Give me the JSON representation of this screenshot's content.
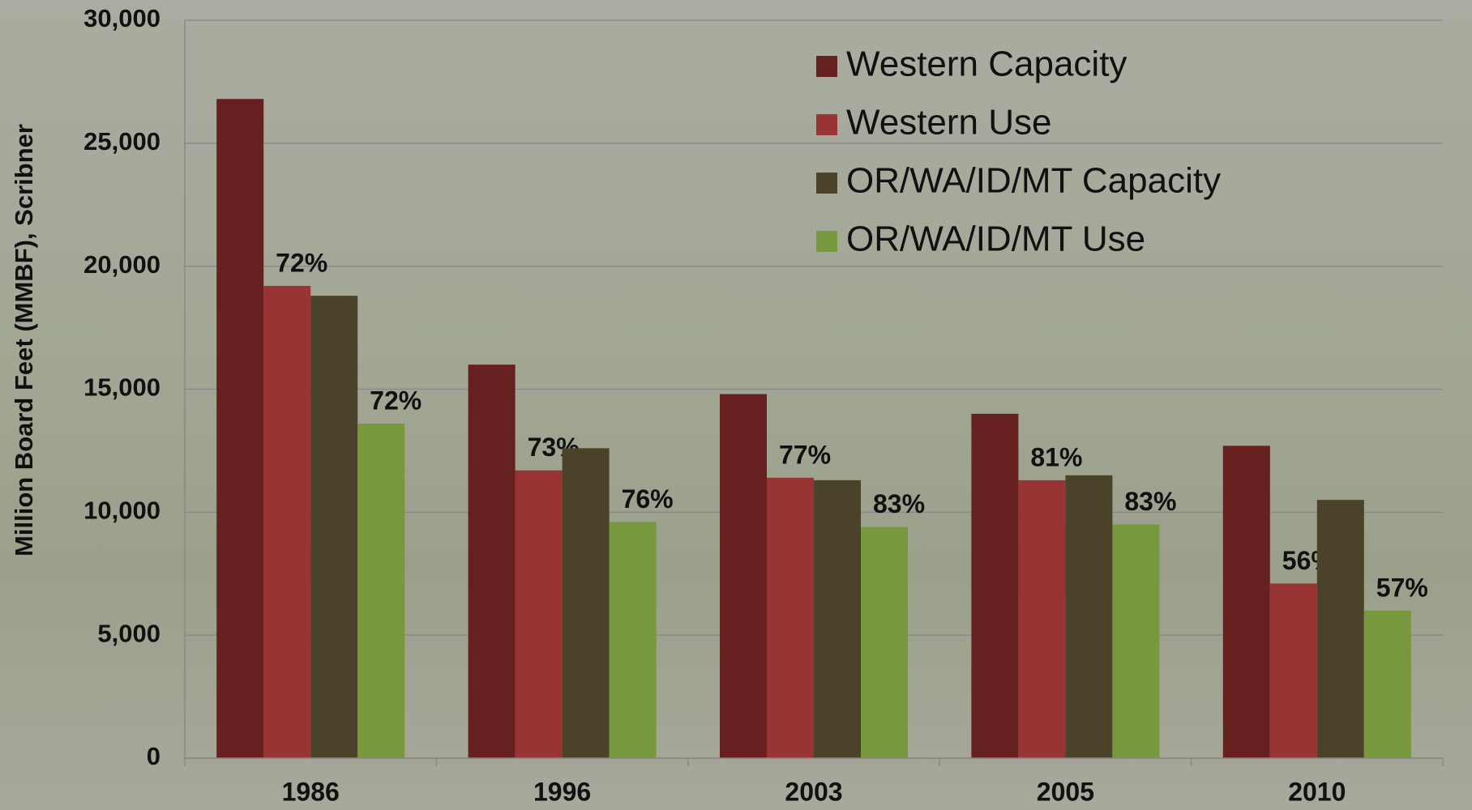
{
  "chart_data": {
    "type": "bar",
    "y_label": "Million Board Feet (MMBF), Scribner",
    "categories": [
      "1986",
      "1996",
      "2003",
      "2005",
      "2010"
    ],
    "series": [
      {
        "name": "Western Capacity",
        "color": "#65201f",
        "values": [
          26800,
          16000,
          14800,
          14000,
          12700
        ]
      },
      {
        "name": "Western Use",
        "color": "#983434",
        "values": [
          19200,
          11700,
          11400,
          11300,
          7100
        ],
        "rate_labels": [
          "72%",
          "73%",
          "77%",
          "81%",
          "56%"
        ]
      },
      {
        "name": "OR/WA/ID/MT Capacity",
        "color": "#4a4229",
        "values": [
          18800,
          12600,
          11300,
          11500,
          10500
        ]
      },
      {
        "name": "OR/WA/ID/MT Use",
        "color": "#77983c",
        "values": [
          13600,
          9600,
          9400,
          9500,
          6000
        ],
        "rate_labels": [
          "72%",
          "76%",
          "83%",
          "83%",
          "57%"
        ]
      }
    ],
    "ylim": [
      0,
      30000
    ],
    "yticks": [
      0,
      {
        "value": 5000,
        "label": "5,000"
      },
      {
        "value": 10000,
        "label": "10,000"
      },
      {
        "value": 15000,
        "label": "15,000"
      },
      {
        "value": 20000,
        "label": "20,000"
      },
      {
        "value": 25000,
        "label": "25,000"
      },
      {
        "value": 30000,
        "label": "30,000"
      }
    ],
    "grid": true,
    "legend": "top-right"
  }
}
